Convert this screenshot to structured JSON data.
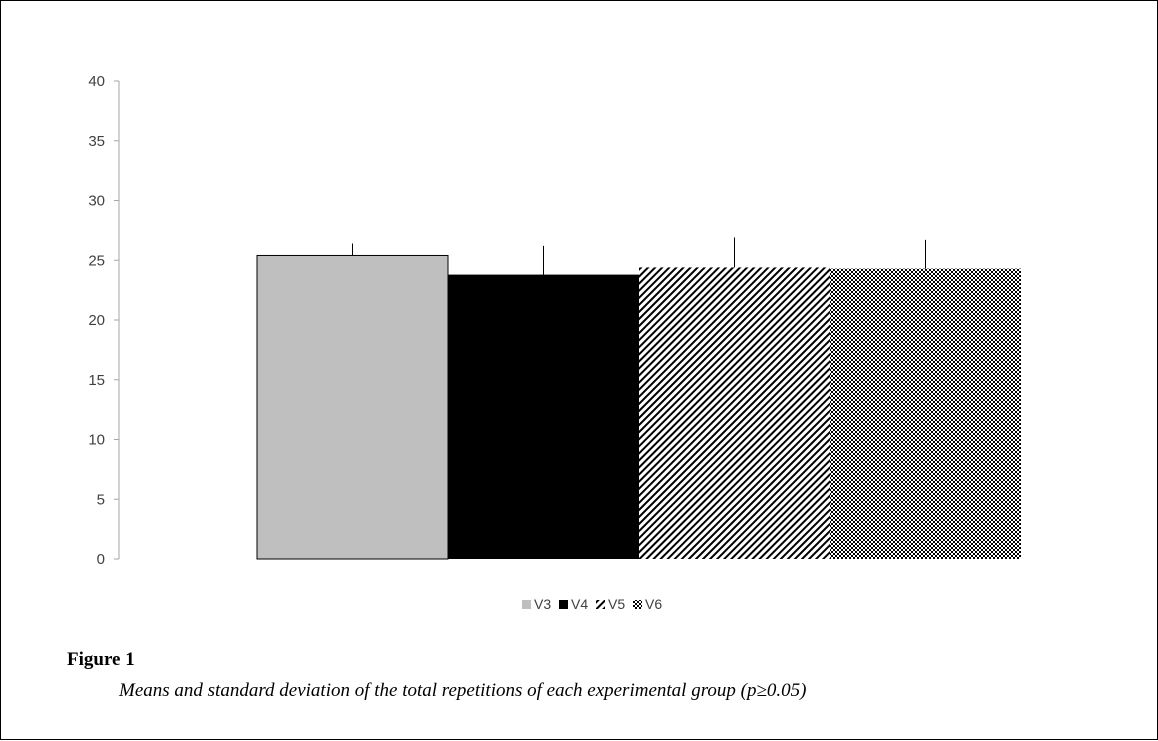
{
  "figure": {
    "title": "Figure 1",
    "caption": "Means and standard deviation of the total repetitions of each experimental group (p≥0.05)"
  },
  "chart_data": {
    "type": "bar",
    "categories": [
      "V3",
      "V4",
      "V5",
      "V6"
    ],
    "values": [
      25.4,
      23.8,
      24.4,
      24.3
    ],
    "error": [
      1.0,
      2.4,
      2.5,
      2.4
    ],
    "ylim": [
      0,
      40
    ],
    "yticks": [
      0,
      5,
      10,
      15,
      20,
      25,
      30,
      35,
      40
    ],
    "xlabel": "",
    "ylabel": "",
    "legend": {
      "position": "bottom",
      "entries": [
        {
          "label": "V3",
          "color": "#bfbfbf",
          "pattern": "solid"
        },
        {
          "label": "V4",
          "color": "#000000",
          "pattern": "solid"
        },
        {
          "label": "V5",
          "color": "#000000",
          "pattern": "diagonal-stripes"
        },
        {
          "label": "V6",
          "color": "#000000",
          "pattern": "crosshatch"
        }
      ]
    },
    "grid": false
  }
}
